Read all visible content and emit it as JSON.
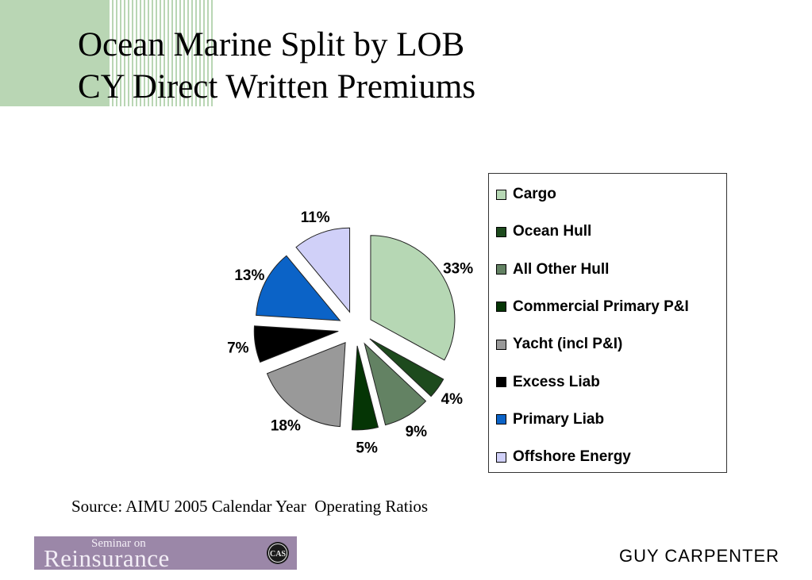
{
  "slide": {
    "title_lines": [
      "Ocean Marine Split by LOB",
      "CY Direct Written Premiums"
    ],
    "source": "Source: AIMU 2005 Calendar Year  Operating Ratios",
    "footer_left_logo": {
      "small_text": "Seminar on",
      "main_text": "Reinsurance",
      "seal_text": "CAS"
    },
    "footer_right_logo": "GUY CARPENTER"
  },
  "chart_data": {
    "type": "pie",
    "title": "",
    "exploded": true,
    "legend_position": "right",
    "categories": [
      "Cargo",
      "Ocean Hull",
      "All Other Hull",
      "Commercial Primary P&I",
      "Yacht (incl P&I)",
      "Excess Liab",
      "Primary Liab",
      "Offshore Energy"
    ],
    "values": [
      33,
      4,
      9,
      5,
      18,
      7,
      13,
      11
    ],
    "value_labels": [
      "33%",
      "4%",
      "9%",
      "5%",
      "18%",
      "7%",
      "13%",
      "11%"
    ],
    "colors": [
      "#b6d7b4",
      "#1d4a1d",
      "#638263",
      "#053505",
      "#999999",
      "#000000",
      "#0b63c7",
      "#d0d0f8"
    ]
  }
}
